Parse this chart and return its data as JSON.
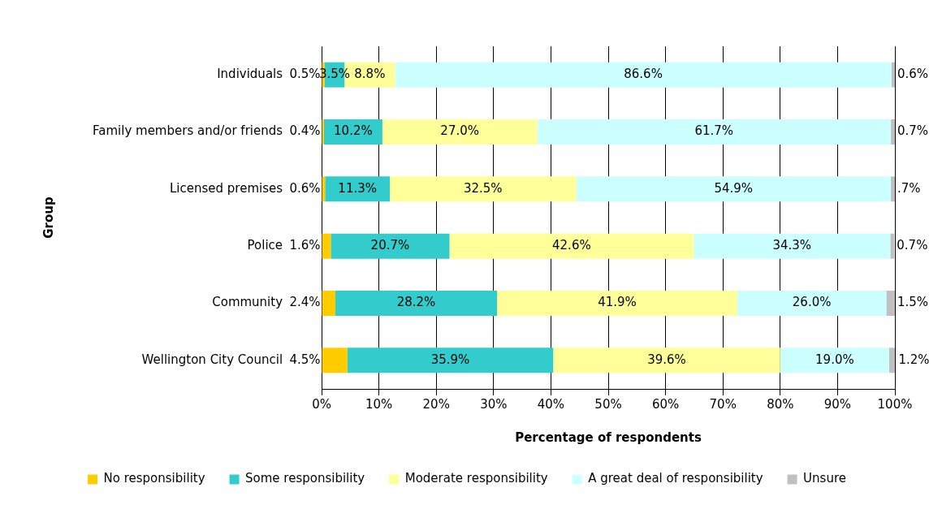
{
  "chart_data": {
    "type": "bar",
    "orientation": "horizontal",
    "stacked": true,
    "ylabel": "Group",
    "xlabel": "Percentage of respondents",
    "categories": [
      "Individuals",
      "Family members and/or friends",
      "Licensed premises",
      "Police",
      "Community",
      "Wellington City Council"
    ],
    "series": [
      {
        "name": "No responsibility",
        "color": "#ffcc00",
        "values": [
          0.5,
          0.4,
          0.6,
          1.6,
          2.4,
          4.5
        ],
        "value_labels": [
          "0.5%",
          "0.4%",
          "0.6%",
          "1.6%",
          "2.4%",
          "4.5%"
        ]
      },
      {
        "name": "Some responsibility",
        "color": "#33cccc",
        "values": [
          3.5,
          10.2,
          11.3,
          20.7,
          28.2,
          35.9
        ],
        "value_labels": [
          "3.5%",
          "10.2%",
          "11.3%",
          "20.7%",
          "28.2%",
          "35.9%"
        ]
      },
      {
        "name": "Moderate responsibility",
        "color": "#ffff99",
        "values": [
          8.8,
          27.0,
          32.5,
          42.6,
          41.9,
          39.6
        ],
        "value_labels": [
          "8.8%",
          "27.0%",
          "32.5%",
          "42.6%",
          "41.9%",
          "39.6%"
        ]
      },
      {
        "name": "A great deal of responsibility",
        "color": "#ccffff",
        "values": [
          86.6,
          61.7,
          54.9,
          34.3,
          26.0,
          19.0
        ],
        "value_labels": [
          "86.6%",
          "61.7%",
          "54.9%",
          "34.3%",
          "26.0%",
          "19.0%"
        ]
      },
      {
        "name": "Unsure",
        "color": "#c0c0c0",
        "values": [
          0.6,
          0.7,
          0.7,
          0.7,
          1.5,
          1.2
        ],
        "value_labels": [
          "0.6%",
          "0.7%",
          ".7%",
          "0.7%",
          "1.5%",
          "1.2%"
        ]
      }
    ],
    "xlim": [
      0,
      100
    ],
    "xticks": [
      {
        "value": 0,
        "label": "0%"
      },
      {
        "value": 10,
        "label": "10%"
      },
      {
        "value": 20,
        "label": "20%"
      },
      {
        "value": 30,
        "label": "30%"
      },
      {
        "value": 40,
        "label": "40%"
      },
      {
        "value": 50,
        "label": "50%"
      },
      {
        "value": 60,
        "label": "60%"
      },
      {
        "value": 70,
        "label": "70%"
      },
      {
        "value": 80,
        "label": "80%"
      },
      {
        "value": 90,
        "label": "90%"
      },
      {
        "value": 100,
        "label": "100%"
      }
    ],
    "grid": "x",
    "legend": "bottom"
  }
}
